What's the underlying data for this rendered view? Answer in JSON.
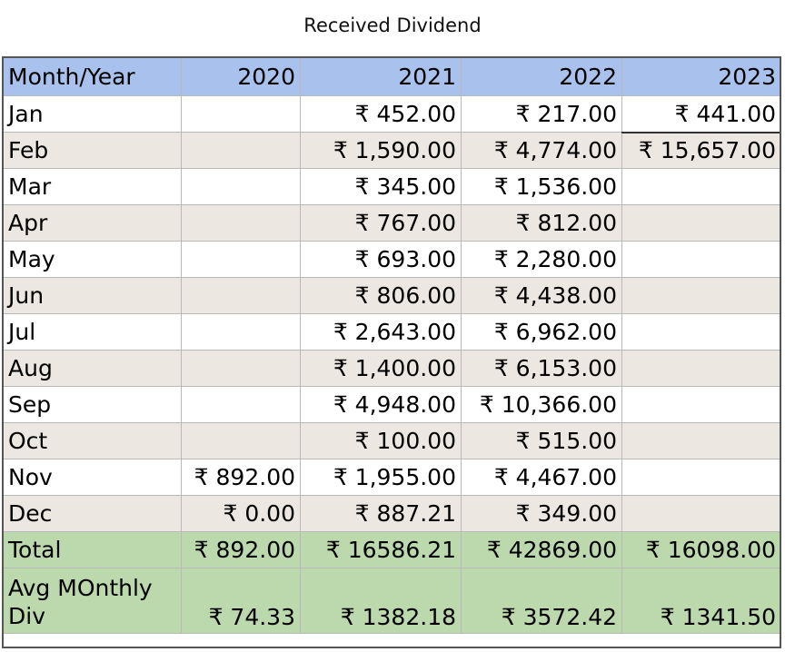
{
  "title": "Received Dividend",
  "header": {
    "label": "Month/Year",
    "years": [
      "2020",
      "2021",
      "2022",
      "2023"
    ]
  },
  "rows": [
    {
      "month": "Jan",
      "values": [
        "",
        "₹ 452.00",
        "₹ 217.00",
        "₹ 441.00"
      ]
    },
    {
      "month": "Feb",
      "values": [
        "",
        "₹ 1,590.00",
        "₹ 4,774.00",
        "₹ 15,657.00"
      ]
    },
    {
      "month": "Mar",
      "values": [
        "",
        "₹ 345.00",
        "₹ 1,536.00",
        ""
      ]
    },
    {
      "month": "Apr",
      "values": [
        "",
        "₹ 767.00",
        "₹ 812.00",
        ""
      ]
    },
    {
      "month": "May",
      "values": [
        "",
        "₹ 693.00",
        "₹ 2,280.00",
        ""
      ]
    },
    {
      "month": "Jun",
      "values": [
        "",
        "₹ 806.00",
        "₹ 4,438.00",
        ""
      ]
    },
    {
      "month": "Jul",
      "values": [
        "",
        "₹ 2,643.00",
        "₹ 6,962.00",
        ""
      ]
    },
    {
      "month": "Aug",
      "values": [
        "",
        "₹ 1,400.00",
        "₹ 6,153.00",
        ""
      ]
    },
    {
      "month": "Sep",
      "values": [
        "",
        "₹ 4,948.00",
        "₹ 10,366.00",
        ""
      ]
    },
    {
      "month": "Oct",
      "values": [
        "",
        "₹ 100.00",
        "₹ 515.00",
        ""
      ]
    },
    {
      "month": "Nov",
      "values": [
        "₹ 892.00",
        "₹ 1,955.00",
        "₹ 4,467.00",
        ""
      ]
    },
    {
      "month": "Dec",
      "values": [
        "₹ 0.00",
        "₹ 887.21",
        "₹ 349.00",
        ""
      ]
    }
  ],
  "total": {
    "label": "Total",
    "values": [
      "₹ 892.00",
      "₹ 16586.21",
      "₹ 42869.00",
      "₹ 16098.00"
    ]
  },
  "avg": {
    "label": "Avg MOnthly Div",
    "values": [
      "₹ 74.33",
      "₹ 1382.18",
      "₹ 3572.42",
      "₹ 1341.50"
    ]
  },
  "colors": {
    "header_bg": "#a9c2ed",
    "band_bg": "#ece8e1",
    "total_bg": "#bcd8ad"
  }
}
